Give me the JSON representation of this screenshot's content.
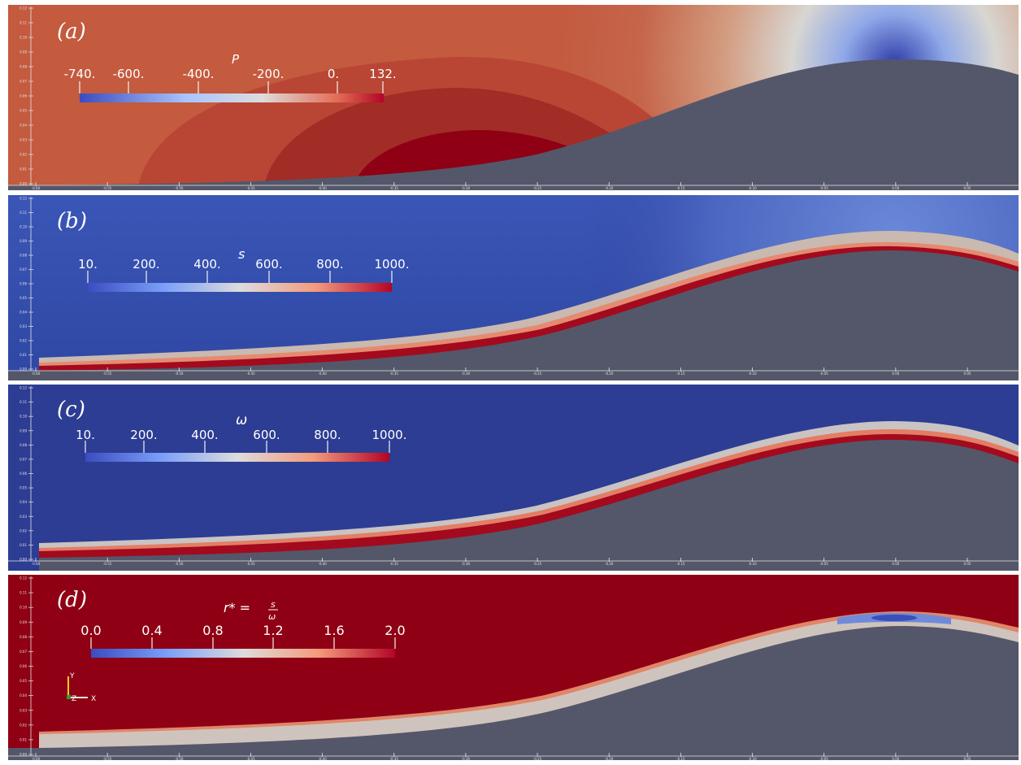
{
  "colors": {
    "pressure_low": "#3b4cc0",
    "neutral": "#dddcdc",
    "high": "#b40426",
    "deep_red": "#8f0015",
    "blue_field": "#2d3d93",
    "wall": "#545769",
    "axis": "#e6e6e6"
  },
  "panels": [
    {
      "label_open": "(",
      "label_letter": "a",
      "label_close": ")",
      "colorbar_title": "P",
      "colorbar_ticks": [
        "-740.",
        "-600.",
        "-400.",
        "-200.",
        "0.",
        "132."
      ],
      "tick_values": [
        -740,
        -600,
        -400,
        -200,
        0,
        132
      ],
      "range": [
        -740,
        132
      ]
    },
    {
      "label_open": "(",
      "label_letter": "b",
      "label_close": ")",
      "colorbar_title": "s",
      "colorbar_ticks": [
        "10.",
        "200.",
        "400.",
        "600.",
        "800.",
        "1000."
      ],
      "tick_values": [
        10,
        200,
        400,
        600,
        800,
        1000
      ],
      "range": [
        10,
        1000
      ]
    },
    {
      "label_open": "(",
      "label_letter": "c",
      "label_close": ")",
      "colorbar_title": "ω",
      "colorbar_ticks": [
        "10.",
        "200.",
        "400.",
        "600.",
        "800.",
        "1000."
      ],
      "tick_values": [
        10,
        200,
        400,
        600,
        800,
        1000
      ],
      "range": [
        10,
        1000
      ]
    },
    {
      "label_open": "(",
      "label_letter": "d",
      "label_close": ")",
      "colorbar_title_lhs": "r* =",
      "colorbar_title_num": "s",
      "colorbar_title_den": "ω",
      "colorbar_ticks": [
        "0.0",
        "0.4",
        "0.8",
        "1.2",
        "1.6",
        "2.0"
      ],
      "tick_values": [
        0,
        0.4,
        0.8,
        1.2,
        1.6,
        2.0
      ],
      "range": [
        0,
        2
      ]
    }
  ],
  "axes": {
    "x_ticks": [
      "-0.60",
      "-0.55",
      "-0.50",
      "-0.45",
      "-0.40",
      "-0.35",
      "-0.30",
      "-0.25",
      "-0.20",
      "-0.15",
      "-0.10",
      "-0.05",
      "0.00",
      "0.05"
    ],
    "y_ticks": [
      "0.12",
      "0.11",
      "0.10",
      "0.09",
      "0.08",
      "0.07",
      "0.06",
      "0.05",
      "0.04",
      "0.03",
      "0.02",
      "0.01",
      "0.00"
    ],
    "orientation": {
      "y": "Y",
      "z": "Z",
      "x": "X"
    }
  }
}
